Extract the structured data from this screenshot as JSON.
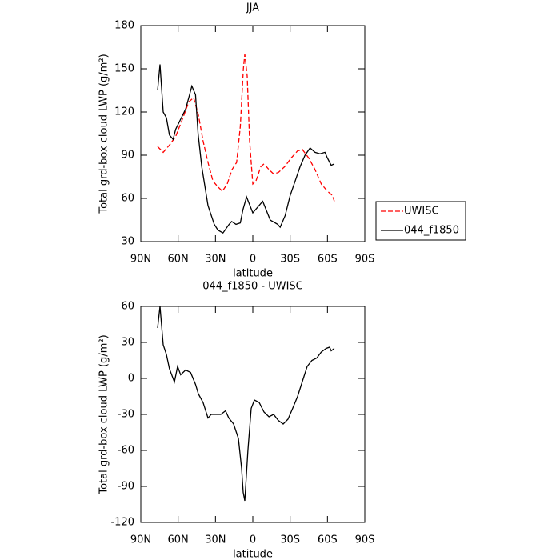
{
  "chart_data": [
    {
      "type": "line",
      "title": "JJA",
      "xlabel": "latitude",
      "ylabel": "Total grd-box cloud LWP (g/m²)",
      "xlim": [
        90,
        -90
      ],
      "xticks": [
        {
          "value": 90,
          "label": "90N"
        },
        {
          "value": 60,
          "label": "60N"
        },
        {
          "value": 30,
          "label": "30N"
        },
        0,
        {
          "value": -30,
          "label": "30S"
        },
        {
          "value": -60,
          "label": "60S"
        },
        {
          "value": -90,
          "label": "90S"
        }
      ],
      "ylim": [
        30,
        180
      ],
      "yticks": [
        30,
        60,
        90,
        120,
        150,
        180
      ],
      "legend": "outside right",
      "series": [
        {
          "name": "UWISC",
          "color": "#ff0000",
          "style": "dashed",
          "x": [
            76.5,
            72,
            67,
            62,
            56.6,
            51.4,
            47.6,
            43.7,
            40,
            36,
            32,
            28,
            24.4,
            20.6,
            16.7,
            13,
            10,
            7.6,
            6.4,
            4.5,
            2.6,
            0,
            -2.5,
            -6.4,
            -9,
            -13,
            -16.7,
            -20.5,
            -25.6,
            -30.8,
            -36,
            -39.8,
            -45,
            -50,
            -55,
            -60,
            -64,
            -65.5
          ],
          "values": [
            96,
            92,
            97,
            103,
            115,
            127,
            130,
            118,
            100,
            85,
            72,
            68,
            65,
            70,
            80,
            85,
            110,
            150,
            160,
            145,
            100,
            70,
            72,
            82,
            84,
            80,
            77,
            78,
            82,
            88,
            93,
            94,
            88,
            80,
            70,
            65,
            62,
            58
          ]
        },
        {
          "name": "044_f1850",
          "color": "#000000",
          "style": "solid",
          "x": [
            76.5,
            74.6,
            72,
            69.4,
            67,
            64,
            62,
            58,
            54,
            51.4,
            49,
            46,
            44,
            41,
            36,
            31,
            28,
            24,
            19,
            17,
            13.5,
            10,
            8,
            5,
            0,
            -8,
            -14,
            -20,
            -22,
            -26,
            -30,
            -34,
            -38,
            -42,
            -46,
            -50,
            -54,
            -58,
            -60,
            -63,
            -65.5
          ],
          "values": [
            135,
            153,
            120,
            116,
            104,
            101,
            108,
            115,
            122,
            130,
            138,
            132,
            105,
            82,
            55,
            42,
            38,
            36,
            42,
            44,
            42,
            43,
            52,
            61,
            50,
            58,
            45,
            42,
            40,
            48,
            62,
            72,
            82,
            90,
            95,
            92,
            91,
            92,
            88,
            83,
            84
          ]
        }
      ]
    },
    {
      "type": "line",
      "title": "044_f1850 - UWISC",
      "xlabel": "latitude",
      "ylabel": "Total grd-box cloud LWP (g/m²)",
      "xlim": [
        90,
        -90
      ],
      "xticks": [
        {
          "value": 90,
          "label": "90N"
        },
        {
          "value": 60,
          "label": "60N"
        },
        {
          "value": 30,
          "label": "30N"
        },
        0,
        {
          "value": -30,
          "label": "30S"
        },
        {
          "value": -60,
          "label": "60S"
        },
        {
          "value": -90,
          "label": "90S"
        }
      ],
      "ylim": [
        -120,
        60
      ],
      "yticks": [
        -120,
        -90,
        -60,
        -30,
        0,
        30,
        60
      ],
      "color": "#000000",
      "x": [
        76.5,
        74.6,
        72,
        69.4,
        67,
        63,
        60.4,
        58,
        54,
        50,
        46,
        43.7,
        40,
        36,
        33.4,
        29.6,
        25.7,
        21.9,
        19.3,
        15.4,
        11.6,
        9,
        7.7,
        6.4,
        3.9,
        1.3,
        -1.3,
        -5.1,
        -9,
        -13,
        -16.7,
        -20.5,
        -24.4,
        -28.3,
        -32,
        -36,
        -40,
        -43.7,
        -47.5,
        -51.4,
        -55,
        -59,
        -61.7,
        -63,
        -65.5
      ],
      "values": [
        42,
        60,
        28,
        20,
        8,
        -3,
        10,
        3,
        7,
        5,
        -5,
        -13,
        -20,
        -33,
        -30,
        -30,
        -30,
        -27,
        -33,
        -38,
        -50,
        -75,
        -95,
        -102,
        -60,
        -25,
        -18,
        -20,
        -28,
        -32,
        -30,
        -35,
        -38,
        -34,
        -25,
        -15,
        -2,
        10,
        15,
        17,
        22,
        25,
        26,
        23,
        25
      ]
    }
  ]
}
